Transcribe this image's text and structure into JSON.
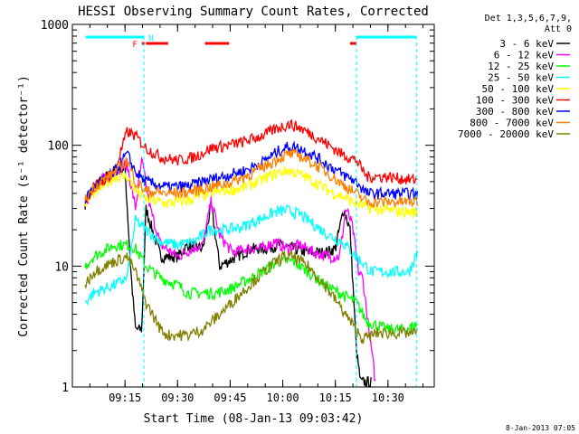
{
  "chart_data": {
    "type": "line",
    "title": "HESSI Observing Summary Count Rates, Corrected",
    "xlabel": "Start Time (08-Jan-13 09:03:42)",
    "ylabel": "Corrected Count Rate (s⁻¹ detector⁻¹)",
    "yscale": "log",
    "ylim": [
      1,
      1000
    ],
    "xlim_minutes": [
      9.0,
      10.72
    ],
    "x_unit": "hours (09:00 = 9.0)",
    "x_ticks": [
      "09:15",
      "09:30",
      "09:45",
      "10:00",
      "10:15",
      "10:30"
    ],
    "y_ticks": [
      "1",
      "10",
      "100",
      "1000"
    ],
    "legend_header": [
      "Det 1,3,5,6,7,9,",
      "Att 0"
    ],
    "timestamp": "8-Jan-2013 07:05",
    "flags": {
      "night_label": "N",
      "flare_label": "F",
      "saa_color": "#ff0000",
      "night_color": "#00ffff",
      "night_intervals": [
        [
          9.063,
          9.34
        ],
        [
          10.35,
          10.635
        ]
      ],
      "saa_intervals": [
        [
          9.33,
          9.345
        ],
        [
          9.35,
          9.455
        ],
        [
          9.63,
          9.745
        ],
        [
          10.32,
          10.352
        ]
      ],
      "dashed_lines": [
        9.34,
        10.35,
        10.635
      ]
    },
    "series": [
      {
        "name": "3 - 6 keV",
        "color": "#000000",
        "points": [
          [
            9.06,
            33
          ],
          [
            9.1,
            45
          ],
          [
            9.2,
            62
          ],
          [
            9.25,
            65
          ],
          [
            9.28,
            8
          ],
          [
            9.3,
            3
          ],
          [
            9.33,
            3
          ],
          [
            9.35,
            30
          ],
          [
            9.38,
            20
          ],
          [
            9.42,
            12
          ],
          [
            9.5,
            12
          ],
          [
            9.55,
            15
          ],
          [
            9.62,
            14
          ],
          [
            9.66,
            32
          ],
          [
            9.7,
            10
          ],
          [
            9.78,
            12
          ],
          [
            9.85,
            14
          ],
          [
            9.92,
            14
          ],
          [
            9.98,
            15
          ],
          [
            10.05,
            14
          ],
          [
            10.12,
            13
          ],
          [
            10.2,
            13
          ],
          [
            10.25,
            14
          ],
          [
            10.29,
            30
          ],
          [
            10.32,
            20
          ],
          [
            10.35,
            2
          ],
          [
            10.37,
            1.1
          ],
          [
            10.42,
            1.1
          ]
        ]
      },
      {
        "name": "6 - 12 keV",
        "color": "#ff00ff",
        "points": [
          [
            9.06,
            33
          ],
          [
            9.1,
            45
          ],
          [
            9.2,
            62
          ],
          [
            9.26,
            70
          ],
          [
            9.3,
            30
          ],
          [
            9.33,
            75
          ],
          [
            9.37,
            30
          ],
          [
            9.42,
            15
          ],
          [
            9.5,
            12
          ],
          [
            9.57,
            14
          ],
          [
            9.62,
            15
          ],
          [
            9.66,
            35
          ],
          [
            9.7,
            18
          ],
          [
            9.76,
            13
          ],
          [
            9.83,
            14
          ],
          [
            9.9,
            14
          ],
          [
            9.96,
            16
          ],
          [
            10.02,
            14
          ],
          [
            10.08,
            15
          ],
          [
            10.15,
            13
          ],
          [
            10.22,
            12
          ],
          [
            10.27,
            12
          ],
          [
            10.3,
            30
          ],
          [
            10.33,
            22
          ],
          [
            10.36,
            9
          ],
          [
            10.38,
            8
          ],
          [
            10.44,
            1.1
          ]
        ]
      },
      {
        "name": "12 - 25 keV",
        "color": "#00ff00",
        "points": [
          [
            9.06,
            10
          ],
          [
            9.1,
            12
          ],
          [
            9.2,
            15
          ],
          [
            9.27,
            15
          ],
          [
            9.3,
            14
          ],
          [
            9.35,
            10
          ],
          [
            9.42,
            8
          ],
          [
            9.5,
            7
          ],
          [
            9.55,
            6
          ],
          [
            9.6,
            6
          ],
          [
            9.68,
            6
          ],
          [
            9.75,
            6.5
          ],
          [
            9.82,
            7.5
          ],
          [
            9.9,
            9
          ],
          [
            9.98,
            11
          ],
          [
            10.05,
            11
          ],
          [
            10.12,
            9
          ],
          [
            10.2,
            7
          ],
          [
            10.27,
            6
          ],
          [
            10.35,
            5
          ],
          [
            10.4,
            3.5
          ],
          [
            10.5,
            3
          ],
          [
            10.58,
            3
          ],
          [
            10.64,
            3.3
          ]
        ]
      },
      {
        "name": "25 - 50 keV",
        "color": "#00ffff",
        "points": [
          [
            9.06,
            5
          ],
          [
            9.1,
            6
          ],
          [
            9.2,
            7
          ],
          [
            9.26,
            8
          ],
          [
            9.3,
            24
          ],
          [
            9.35,
            20
          ],
          [
            9.42,
            16
          ],
          [
            9.5,
            15
          ],
          [
            9.58,
            16
          ],
          [
            9.65,
            20
          ],
          [
            9.72,
            20
          ],
          [
            9.8,
            21
          ],
          [
            9.88,
            24
          ],
          [
            9.96,
            28
          ],
          [
            10.02,
            29
          ],
          [
            10.08,
            27
          ],
          [
            10.15,
            22
          ],
          [
            10.22,
            18
          ],
          [
            10.28,
            16
          ],
          [
            10.35,
            12
          ],
          [
            10.42,
            9
          ],
          [
            10.5,
            9
          ],
          [
            10.6,
            9
          ],
          [
            10.64,
            13
          ]
        ]
      },
      {
        "name": "50 - 100 keV",
        "color": "#ffff00",
        "points": [
          [
            9.06,
            33
          ],
          [
            9.1,
            40
          ],
          [
            9.2,
            55
          ],
          [
            9.26,
            55
          ],
          [
            9.3,
            42
          ],
          [
            9.35,
            36
          ],
          [
            9.45,
            33
          ],
          [
            9.55,
            35
          ],
          [
            9.65,
            40
          ],
          [
            9.72,
            42
          ],
          [
            9.8,
            44
          ],
          [
            9.88,
            50
          ],
          [
            9.96,
            58
          ],
          [
            10.02,
            62
          ],
          [
            10.08,
            58
          ],
          [
            10.15,
            50
          ],
          [
            10.22,
            42
          ],
          [
            10.28,
            38
          ],
          [
            10.35,
            33
          ],
          [
            10.42,
            30
          ],
          [
            10.5,
            29
          ],
          [
            10.6,
            28
          ],
          [
            10.64,
            28
          ]
        ]
      },
      {
        "name": "100 - 300 keV",
        "color": "#ff0000",
        "points": [
          [
            9.06,
            35
          ],
          [
            9.1,
            45
          ],
          [
            9.2,
            60
          ],
          [
            9.26,
            130
          ],
          [
            9.3,
            120
          ],
          [
            9.35,
            95
          ],
          [
            9.42,
            80
          ],
          [
            9.5,
            75
          ],
          [
            9.58,
            80
          ],
          [
            9.66,
            95
          ],
          [
            9.74,
            100
          ],
          [
            9.82,
            108
          ],
          [
            9.9,
            120
          ],
          [
            9.98,
            140
          ],
          [
            10.03,
            150
          ],
          [
            10.08,
            140
          ],
          [
            10.15,
            120
          ],
          [
            10.22,
            100
          ],
          [
            10.28,
            85
          ],
          [
            10.35,
            75
          ],
          [
            10.4,
            55
          ],
          [
            10.5,
            55
          ],
          [
            10.6,
            52
          ],
          [
            10.64,
            52
          ]
        ]
      },
      {
        "name": "300 - 800 keV",
        "color": "#0000ff",
        "points": [
          [
            9.06,
            35
          ],
          [
            9.1,
            45
          ],
          [
            9.2,
            60
          ],
          [
            9.26,
            85
          ],
          [
            9.3,
            60
          ],
          [
            9.35,
            50
          ],
          [
            9.45,
            45
          ],
          [
            9.55,
            46
          ],
          [
            9.65,
            52
          ],
          [
            9.73,
            56
          ],
          [
            9.82,
            62
          ],
          [
            9.9,
            72
          ],
          [
            9.98,
            90
          ],
          [
            10.03,
            98
          ],
          [
            10.08,
            95
          ],
          [
            10.15,
            82
          ],
          [
            10.22,
            68
          ],
          [
            10.28,
            58
          ],
          [
            10.35,
            50
          ],
          [
            10.4,
            40
          ],
          [
            10.5,
            40
          ],
          [
            10.6,
            40
          ],
          [
            10.64,
            39
          ]
        ]
      },
      {
        "name": "800 - 7000 keV",
        "color": "#ff8000",
        "points": [
          [
            9.06,
            35
          ],
          [
            9.1,
            45
          ],
          [
            9.2,
            60
          ],
          [
            9.26,
            75
          ],
          [
            9.3,
            50
          ],
          [
            9.35,
            42
          ],
          [
            9.45,
            40
          ],
          [
            9.55,
            41
          ],
          [
            9.65,
            45
          ],
          [
            9.73,
            48
          ],
          [
            9.82,
            55
          ],
          [
            9.9,
            65
          ],
          [
            9.98,
            78
          ],
          [
            10.03,
            85
          ],
          [
            10.08,
            82
          ],
          [
            10.15,
            70
          ],
          [
            10.22,
            58
          ],
          [
            10.28,
            48
          ],
          [
            10.35,
            40
          ],
          [
            10.4,
            34
          ],
          [
            10.5,
            34
          ],
          [
            10.6,
            34
          ],
          [
            10.64,
            34
          ]
        ]
      },
      {
        "name": "7000 - 20000 keV",
        "color": "#808000",
        "points": [
          [
            9.06,
            7
          ],
          [
            9.1,
            9
          ],
          [
            9.2,
            11
          ],
          [
            9.26,
            12
          ],
          [
            9.3,
            9
          ],
          [
            9.35,
            5
          ],
          [
            9.42,
            3
          ],
          [
            9.45,
            2.7
          ],
          [
            9.55,
            2.7
          ],
          [
            9.62,
            3
          ],
          [
            9.7,
            4
          ],
          [
            9.78,
            5.5
          ],
          [
            9.86,
            7.5
          ],
          [
            9.94,
            10
          ],
          [
            10.0,
            12
          ],
          [
            10.05,
            12
          ],
          [
            10.12,
            10
          ],
          [
            10.2,
            7
          ],
          [
            10.26,
            5
          ],
          [
            10.32,
            3.5
          ],
          [
            10.38,
            2.5
          ],
          [
            10.45,
            2.8
          ],
          [
            10.55,
            2.8
          ],
          [
            10.64,
            2.8
          ]
        ]
      }
    ]
  }
}
